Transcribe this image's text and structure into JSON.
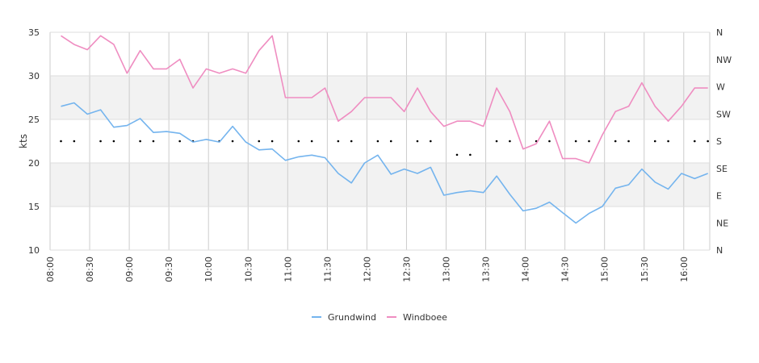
{
  "chart_data": {
    "type": "line",
    "ylabel": "kts",
    "ylim": [
      10,
      35
    ],
    "y_ticks": [
      "10",
      "15",
      "20",
      "25",
      "30",
      "35"
    ],
    "y2_ticks": [
      "N",
      "NE",
      "E",
      "SE",
      "S",
      "SW",
      "W",
      "NW",
      "N"
    ],
    "x_ticks": [
      "08:00",
      "08:30",
      "09:00",
      "09:30",
      "10:00",
      "10:30",
      "11:00",
      "11:30",
      "12:00",
      "12:30",
      "13:00",
      "13:30",
      "14:00",
      "14:30",
      "15:00",
      "15:30",
      "16:00"
    ],
    "x_start": "08:00",
    "x_step_minutes": 10,
    "grid": true,
    "shaded_bands": [
      [
        15,
        20
      ],
      [
        25,
        30
      ]
    ],
    "legend_position": "bottom",
    "series": [
      {
        "name": "Grundwind",
        "color": "#74b4ee",
        "values": [
          26.5,
          26.9,
          25.6,
          26.1,
          24.1,
          24.3,
          25.1,
          23.5,
          23.6,
          23.4,
          22.4,
          22.7,
          22.4,
          24.2,
          22.4,
          21.5,
          21.6,
          20.3,
          20.7,
          20.9,
          20.6,
          18.8,
          17.7,
          20.0,
          20.9,
          18.7,
          19.3,
          18.8,
          19.5,
          16.3,
          16.6,
          16.8,
          16.6,
          18.5,
          16.4,
          14.5,
          14.8,
          15.5,
          14.3,
          13.1,
          14.2,
          15.0,
          17.1,
          17.5,
          19.3,
          17.8,
          17.0,
          18.8,
          18.2,
          18.8
        ]
      },
      {
        "name": "Windboee",
        "color": "#ef8dc1",
        "values": [
          34.6,
          33.6,
          33.0,
          34.6,
          33.6,
          30.3,
          32.9,
          30.8,
          30.8,
          31.9,
          28.6,
          30.8,
          30.3,
          30.8,
          30.3,
          32.9,
          34.6,
          27.5,
          27.5,
          27.5,
          28.6,
          24.8,
          25.9,
          27.5,
          27.5,
          27.5,
          25.9,
          28.6,
          25.9,
          24.2,
          24.8,
          24.8,
          24.2,
          28.6,
          25.9,
          21.6,
          22.2,
          24.8,
          20.5,
          20.5,
          20.0,
          23.2,
          25.9,
          26.5,
          29.2,
          26.5,
          24.8,
          26.5,
          28.6,
          28.6
        ]
      }
    ],
    "direction_marks": [
      {
        "x_index": 0,
        "value": "S"
      },
      {
        "x_index": 1,
        "value": "S"
      },
      {
        "x_index": 3,
        "value": "S"
      },
      {
        "x_index": 4,
        "value": "S"
      },
      {
        "x_index": 6,
        "value": "S"
      },
      {
        "x_index": 7,
        "value": "S"
      },
      {
        "x_index": 9,
        "value": "S"
      },
      {
        "x_index": 10,
        "value": "S"
      },
      {
        "x_index": 12,
        "value": "S"
      },
      {
        "x_index": 13,
        "value": "S"
      },
      {
        "x_index": 15,
        "value": "S"
      },
      {
        "x_index": 16,
        "value": "S"
      },
      {
        "x_index": 18,
        "value": "S"
      },
      {
        "x_index": 19,
        "value": "S"
      },
      {
        "x_index": 21,
        "value": "S"
      },
      {
        "x_index": 22,
        "value": "S"
      },
      {
        "x_index": 24,
        "value": "S"
      },
      {
        "x_index": 25,
        "value": "S"
      },
      {
        "x_index": 27,
        "value": "S"
      },
      {
        "x_index": 28,
        "value": "S"
      },
      {
        "x_index": 30,
        "value": "SSE"
      },
      {
        "x_index": 31,
        "value": "SSE"
      },
      {
        "x_index": 33,
        "value": "S"
      },
      {
        "x_index": 34,
        "value": "S"
      },
      {
        "x_index": 36,
        "value": "S"
      },
      {
        "x_index": 37,
        "value": "S"
      },
      {
        "x_index": 39,
        "value": "S"
      },
      {
        "x_index": 40,
        "value": "S"
      },
      {
        "x_index": 42,
        "value": "S"
      },
      {
        "x_index": 43,
        "value": "S"
      },
      {
        "x_index": 45,
        "value": "S"
      },
      {
        "x_index": 46,
        "value": "S"
      },
      {
        "x_index": 48,
        "value": "S"
      },
      {
        "x_index": 49,
        "value": "S"
      }
    ]
  }
}
